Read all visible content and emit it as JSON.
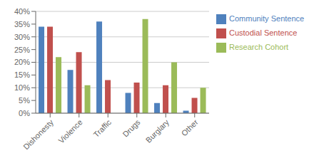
{
  "chart_data": {
    "type": "bar",
    "categories": [
      "Dishonesty",
      "Violence",
      "Traffic",
      "Drugs",
      "Burglary",
      "Other"
    ],
    "series": [
      {
        "name": "Community Sentence",
        "color": "#4F81BD",
        "values": [
          0.34,
          0.17,
          0.36,
          0.08,
          0.04,
          0.01
        ]
      },
      {
        "name": "Custodial Sentence",
        "color": "#C0504D",
        "values": [
          0.34,
          0.24,
          0.13,
          0.12,
          0.11,
          0.06
        ]
      },
      {
        "name": "Research Cohort",
        "color": "#9BBB59",
        "values": [
          0.22,
          0.11,
          0.0,
          0.37,
          0.2,
          0.1
        ]
      }
    ],
    "ylim": [
      0,
      0.4
    ],
    "yticks": [
      {
        "value": 0,
        "label": "0%"
      },
      {
        "value": 0.05,
        "label": "5%"
      },
      {
        "value": 0.1,
        "label": "10%"
      },
      {
        "value": 0.15,
        "label": "15%"
      },
      {
        "value": 0.2,
        "label": "20%"
      },
      {
        "value": 0.25,
        "label": "25%"
      },
      {
        "value": 0.3,
        "label": "30%"
      },
      {
        "value": 0.35,
        "label": "35%"
      },
      {
        "value": 0.4,
        "label": "40%"
      }
    ],
    "grid": true,
    "legend": "right"
  }
}
